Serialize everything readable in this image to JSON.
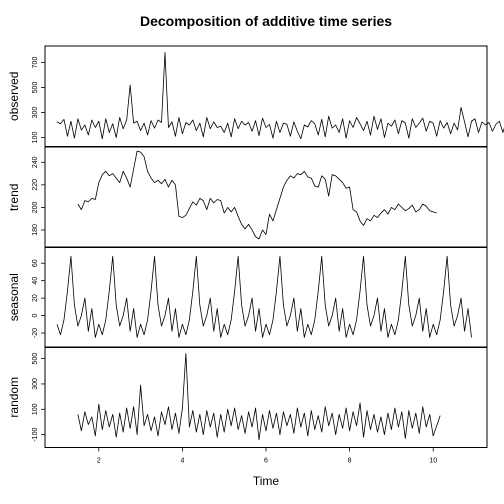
{
  "chart_data": {
    "type": "line",
    "title": "Decomposition of additive time series",
    "xlabel": "Time",
    "x_range": [
      1,
      11
    ],
    "x_ticks": [
      2,
      4,
      6,
      8,
      10
    ],
    "frequency": 12,
    "series": [
      {
        "name": "observed",
        "y_ticks": [
          100,
          300,
          500,
          700
        ],
        "ylim": [
          60,
          800
        ],
        "x_start": 1.0,
        "values": [
          225,
          210,
          245,
          110,
          230,
          95,
          250,
          160,
          200,
          120,
          240,
          180,
          230,
          90,
          250,
          140,
          210,
          100,
          260,
          170,
          240,
          520,
          215,
          230,
          155,
          215,
          120,
          235,
          175,
          240,
          220,
          780,
          180,
          225,
          110,
          260,
          130,
          220,
          200,
          240,
          155,
          215,
          105,
          260,
          170,
          225,
          180,
          190,
          140,
          215,
          105,
          250,
          170,
          230,
          200,
          220,
          150,
          235,
          115,
          255,
          180,
          205,
          95,
          230,
          140,
          215,
          205,
          110,
          225,
          150,
          90,
          200,
          185,
          235,
          210,
          120,
          245,
          105,
          270,
          175,
          200,
          140,
          250,
          95,
          235,
          180,
          260,
          210,
          155,
          230,
          120,
          270,
          165,
          250,
          100,
          215,
          190,
          240,
          130,
          235,
          215,
          95,
          250,
          180,
          215,
          255,
          150,
          230,
          215,
          110,
          235,
          175,
          220,
          130,
          215,
          160,
          340,
          225,
          105,
          230,
          250,
          140,
          225,
          200,
          220,
          150,
          205,
          230,
          140,
          230,
          105,
          230,
          175,
          220,
          120,
          235,
          200,
          250,
          145,
          215,
          105,
          230,
          175,
          230,
          150,
          215,
          205,
          80
        ]
      },
      {
        "name": "trend",
        "y_ticks": [
          180,
          200,
          220,
          240
        ],
        "ylim": [
          168,
          250
        ],
        "x_start": 1.5,
        "values": [
          203,
          198,
          206,
          205,
          208,
          207,
          222,
          229,
          232,
          228,
          230,
          226,
          222,
          232,
          226,
          218,
          234,
          250,
          249,
          245,
          232,
          226,
          222,
          224,
          221,
          225,
          218,
          224,
          220,
          192,
          191,
          193,
          199,
          205,
          202,
          208,
          206,
          198,
          208,
          204,
          207,
          206,
          195,
          200,
          196,
          200,
          192,
          185,
          181,
          185,
          180,
          174,
          172,
          180,
          176,
          194,
          188,
          198,
          208,
          218,
          224,
          228,
          226,
          230,
          229,
          232,
          227,
          226,
          219,
          218,
          228,
          225,
          210,
          229,
          228,
          225,
          222,
          217,
          218,
          198,
          196,
          188,
          184,
          190,
          188,
          193,
          191,
          195,
          198,
          194,
          200,
          198,
          203,
          200,
          197,
          199,
          202,
          196,
          198,
          203,
          201,
          197,
          196,
          195
        ]
      },
      {
        "name": "seasonal",
        "y_ticks": [
          -20,
          0,
          20,
          40,
          60
        ],
        "ylim": [
          -32,
          74
        ],
        "x_start": 1.0,
        "pattern": [
          -10,
          -22,
          -5,
          28,
          68,
          12,
          -12,
          0,
          20,
          -18,
          8,
          -25
        ],
        "cycles": 10
      },
      {
        "name": "random",
        "y_ticks": [
          -100,
          100,
          300,
          500
        ],
        "ylim": [
          -170,
          560
        ],
        "x_start": 1.5,
        "values": [
          60,
          -70,
          80,
          -20,
          40,
          -110,
          140,
          -60,
          90,
          -40,
          60,
          -120,
          70,
          -80,
          110,
          -50,
          120,
          -100,
          290,
          -30,
          60,
          -70,
          40,
          -110,
          80,
          -20,
          120,
          -60,
          70,
          -90,
          110,
          540,
          -40,
          90,
          -80,
          60,
          -100,
          90,
          -40,
          70,
          -120,
          60,
          -80,
          100,
          -30,
          110,
          -60,
          50,
          -90,
          80,
          -40,
          110,
          -140,
          60,
          -70,
          90,
          -50,
          70,
          -100,
          80,
          -30,
          60,
          -90,
          110,
          -40,
          70,
          -110,
          90,
          -60,
          50,
          -80,
          120,
          -30,
          70,
          -100,
          60,
          -50,
          110,
          -70,
          80,
          -30,
          150,
          -120,
          90,
          -60,
          60,
          -80,
          40,
          -100,
          70,
          -60,
          110,
          -40,
          80,
          -130,
          90,
          -50,
          70,
          -90,
          120,
          -40,
          60,
          -110,
          -30,
          50
        ]
      }
    ]
  }
}
